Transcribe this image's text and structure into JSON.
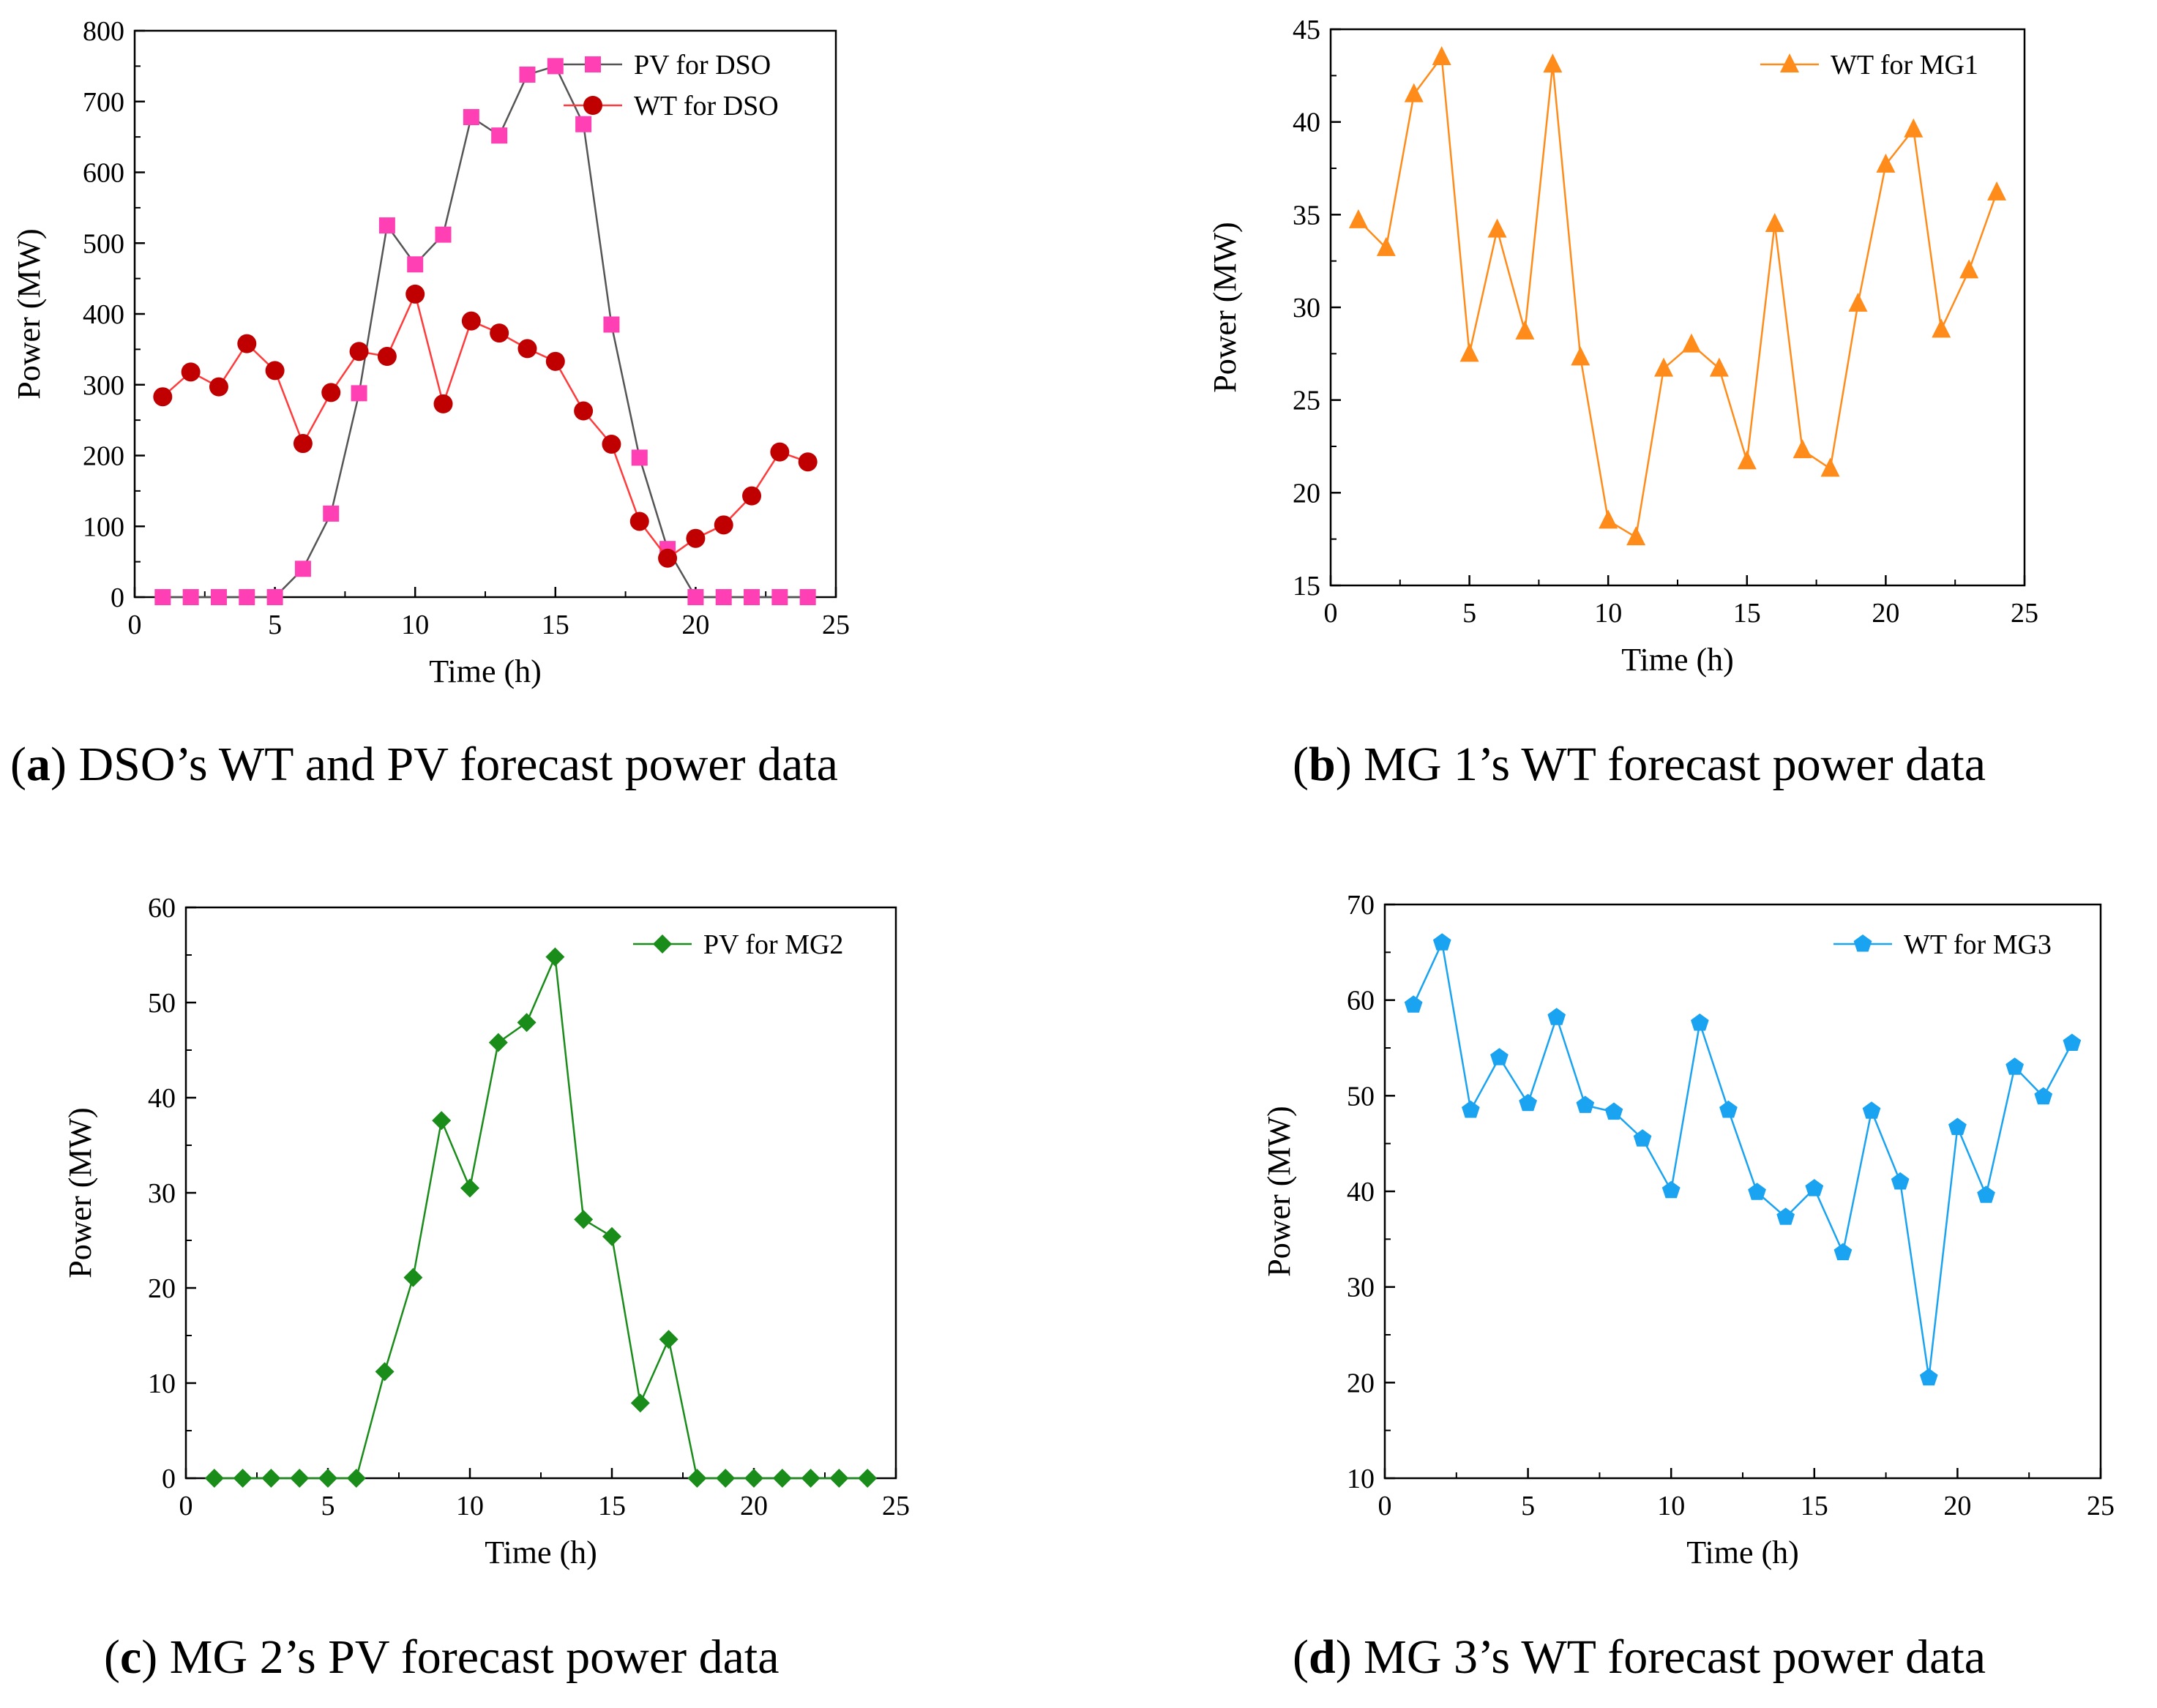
{
  "chart_data": [
    {
      "id": "a",
      "type": "line",
      "caption": {
        "letter": "a",
        "text": " DSO’s WT and PV forecast power data"
      },
      "xlabel": "Time (h)",
      "ylabel": "Power (MW)",
      "xlim": [
        0,
        25
      ],
      "ylim": [
        0,
        800
      ],
      "xticks": [
        0,
        5,
        10,
        15,
        20,
        25
      ],
      "yticks": [
        0,
        100,
        200,
        300,
        400,
        500,
        600,
        700,
        800
      ],
      "legend": "top-right",
      "x": [
        1,
        2,
        3,
        4,
        5,
        6,
        7,
        8,
        9,
        10,
        11,
        12,
        13,
        14,
        15,
        16,
        17,
        18,
        19,
        20,
        21,
        22,
        23,
        24
      ],
      "series": [
        {
          "name": "PV for DSO",
          "marker": "square",
          "marker_color": "#ff3fb4",
          "line_color": "#555555",
          "values": [
            0,
            0,
            0,
            0,
            0,
            40,
            118,
            288,
            525,
            470,
            512,
            678,
            652,
            738,
            750,
            668,
            385,
            197,
            68,
            0,
            0,
            0,
            0,
            0
          ]
        },
        {
          "name": "WT for DSO",
          "marker": "circle",
          "marker_color": "#c00000",
          "line_color": "#ff3b3b",
          "values": [
            283,
            318,
            297,
            358,
            320,
            217,
            289,
            347,
            340,
            428,
            273,
            390,
            373,
            351,
            333,
            263,
            216,
            107,
            55,
            83,
            102,
            143,
            205,
            191
          ]
        }
      ]
    },
    {
      "id": "b",
      "type": "line",
      "caption": {
        "letter": "b",
        "text": " MG 1’s WT forecast power data"
      },
      "xlabel": "Time (h)",
      "ylabel": "Power (MW)",
      "xlim": [
        0,
        25
      ],
      "ylim": [
        15,
        45
      ],
      "xticks": [
        0,
        5,
        10,
        15,
        20,
        25
      ],
      "yticks": [
        15,
        20,
        25,
        30,
        35,
        40,
        45
      ],
      "legend": "top-right",
      "x": [
        1,
        2,
        3,
        4,
        5,
        6,
        7,
        8,
        9,
        10,
        11,
        12,
        13,
        14,
        15,
        16,
        17,
        18,
        19,
        20,
        21,
        22,
        23,
        24
      ],
      "series": [
        {
          "name": "WT for MG1",
          "marker": "triangle",
          "marker_color": "#ff8c1a",
          "line_color": "#ff8c1a",
          "values": [
            34.7,
            33.2,
            41.5,
            43.5,
            27.5,
            34.2,
            28.7,
            43.1,
            27.3,
            18.5,
            17.6,
            26.7,
            28.0,
            26.7,
            21.7,
            34.5,
            22.3,
            21.3,
            30.2,
            37.7,
            39.6,
            28.8,
            32.0,
            36.2
          ]
        }
      ]
    },
    {
      "id": "c",
      "type": "line",
      "caption": {
        "letter": "c",
        "text": " MG 2’s PV forecast power data"
      },
      "xlabel": "Time (h)",
      "ylabel": "Power (MW)",
      "xlim": [
        0,
        25
      ],
      "ylim": [
        0,
        60
      ],
      "xticks": [
        0,
        5,
        10,
        15,
        20,
        25
      ],
      "yticks": [
        0,
        10,
        20,
        30,
        40,
        50,
        60
      ],
      "legend": "top-right",
      "x": [
        1,
        2,
        3,
        4,
        5,
        6,
        7,
        8,
        9,
        10,
        11,
        12,
        13,
        14,
        15,
        16,
        17,
        18,
        19,
        20,
        21,
        22,
        23,
        24
      ],
      "series": [
        {
          "name": "PV for MG2",
          "marker": "diamond",
          "marker_color": "#1a8c1a",
          "line_color": "#1a8c1a",
          "values": [
            0,
            0,
            0,
            0,
            0,
            0,
            11.2,
            21.1,
            37.6,
            30.5,
            45.8,
            47.9,
            54.8,
            27.2,
            25.4,
            7.9,
            14.6,
            0,
            0,
            0,
            0,
            0,
            0,
            0
          ]
        }
      ]
    },
    {
      "id": "d",
      "type": "line",
      "caption": {
        "letter": "d",
        "text": " MG 3’s WT forecast power data"
      },
      "xlabel": "Time (h)",
      "ylabel": "Power (MW)",
      "xlim": [
        0,
        25
      ],
      "ylim": [
        10,
        70
      ],
      "xticks": [
        0,
        5,
        10,
        15,
        20,
        25
      ],
      "yticks": [
        10,
        20,
        30,
        40,
        50,
        60,
        70
      ],
      "legend": "top-right",
      "x": [
        1,
        2,
        3,
        4,
        5,
        6,
        7,
        8,
        9,
        10,
        11,
        12,
        13,
        14,
        15,
        16,
        17,
        18,
        19,
        20,
        21,
        22,
        23,
        24
      ],
      "series": [
        {
          "name": "WT for MG3",
          "marker": "pentagon",
          "marker_color": "#1aa3f0",
          "line_color": "#1aa3f0",
          "values": [
            59.5,
            66.0,
            48.5,
            54.0,
            49.2,
            58.2,
            49.0,
            48.3,
            45.5,
            40.1,
            57.6,
            48.5,
            39.9,
            37.3,
            40.3,
            33.6,
            48.4,
            41.0,
            20.5,
            46.7,
            39.6,
            53.0,
            49.9,
            55.5
          ]
        }
      ]
    }
  ]
}
